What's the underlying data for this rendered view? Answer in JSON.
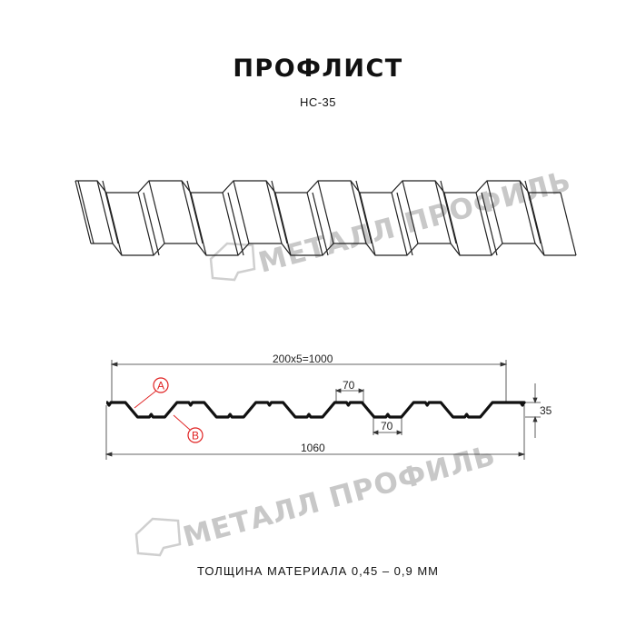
{
  "title": "ПРОФЛИСТ",
  "subtitle": "НС-35",
  "watermark": "МЕТАЛЛ ПРОФИЛЬ",
  "dimensions": {
    "pitch_total": "200x5=1000",
    "top_width": "70",
    "bottom_width": "70",
    "height": "35",
    "full_width": "1060"
  },
  "callouts": {
    "a": "A",
    "b": "B"
  },
  "footer": "ТОЛЩИНА МАТЕРИАЛА 0,45 – 0,9 ММ",
  "colors": {
    "line": "#111111",
    "callout": "#e02020",
    "watermark": "#c8c8c8"
  }
}
